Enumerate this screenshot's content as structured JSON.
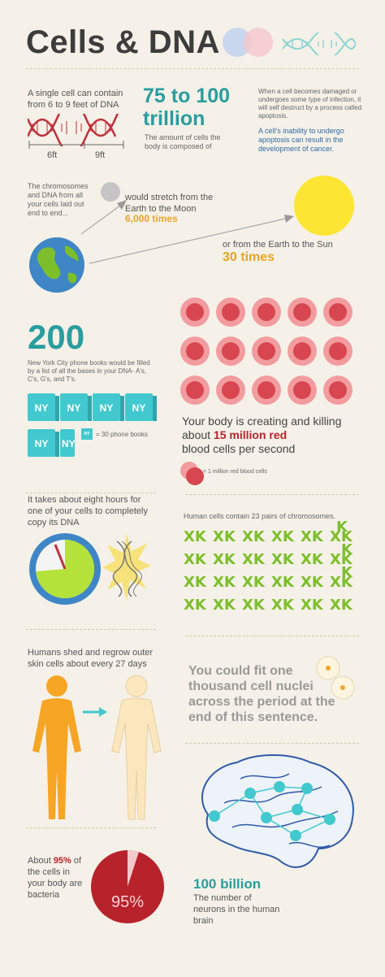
{
  "title": "Cells & DNA",
  "dna_section": {
    "length_text": "A single cell can contain from 6 to 9 feet of DNA",
    "label_6ft": "6ft",
    "label_9ft": "9ft",
    "cells_count": "75 to 100",
    "cells_unit": "trillion",
    "cells_caption": "The amount of cells the body is composed of",
    "apoptosis_text": "When a cell becomes damaged or undergoes some type of infection, it will self destruct by a process called apoptosis.",
    "cancer_text": "A cell's inability to undergo apoptosis can result in the development of cancer."
  },
  "stretch_section": {
    "intro": "The chromosomes and DNA from all your cells laid out end to end...",
    "moon_text": "would stretch from the Earth to the Moon",
    "moon_times": "6,000 times",
    "sun_text": "or from the Earth to the Sun",
    "sun_times": "30 times"
  },
  "phonebook_section": {
    "number": "200",
    "text": "New York City phone books would be filled by a list of all the bases in your DNA- A's, C's, G's, and T's.",
    "book_label": "NY",
    "legend_label": "NY",
    "legend_text": "= 30 phone books",
    "books_shown": 6.5
  },
  "blood_section": {
    "text_pre": "Your body is creating and killing about ",
    "highlight": "15 million red",
    "text_post": "blood cells per second",
    "legend": "= 1 million red blood cells"
  },
  "copy_section": {
    "text": "It takes about eight hours for one of your cells to completely copy its DNA"
  },
  "chromosome_section": {
    "text": "Human cells contain 23 pairs of chromosomes.",
    "glyph": "XK"
  },
  "skin_section": {
    "text": "Humans shed and regrow outer skin cells about every 27 days"
  },
  "nuclei_section": {
    "text": "You could fit one thousand cell nuclei across the period at the end of this sentence."
  },
  "bacteria_section": {
    "text_pre": "About ",
    "percent_bold": "95%",
    "text_post": " of the cells in your body are bacteria",
    "pie_label": "95%",
    "pie_value": 95
  },
  "neuron_section": {
    "count": "100 billion",
    "caption": "The number of neurons in the human brain"
  },
  "colors": {
    "teal": "#2a9d9f",
    "gold": "#e9a426",
    "red": "#d8464f",
    "green": "#7cbf2b",
    "cyan": "#41c9cf",
    "orange": "#f4a42b"
  }
}
